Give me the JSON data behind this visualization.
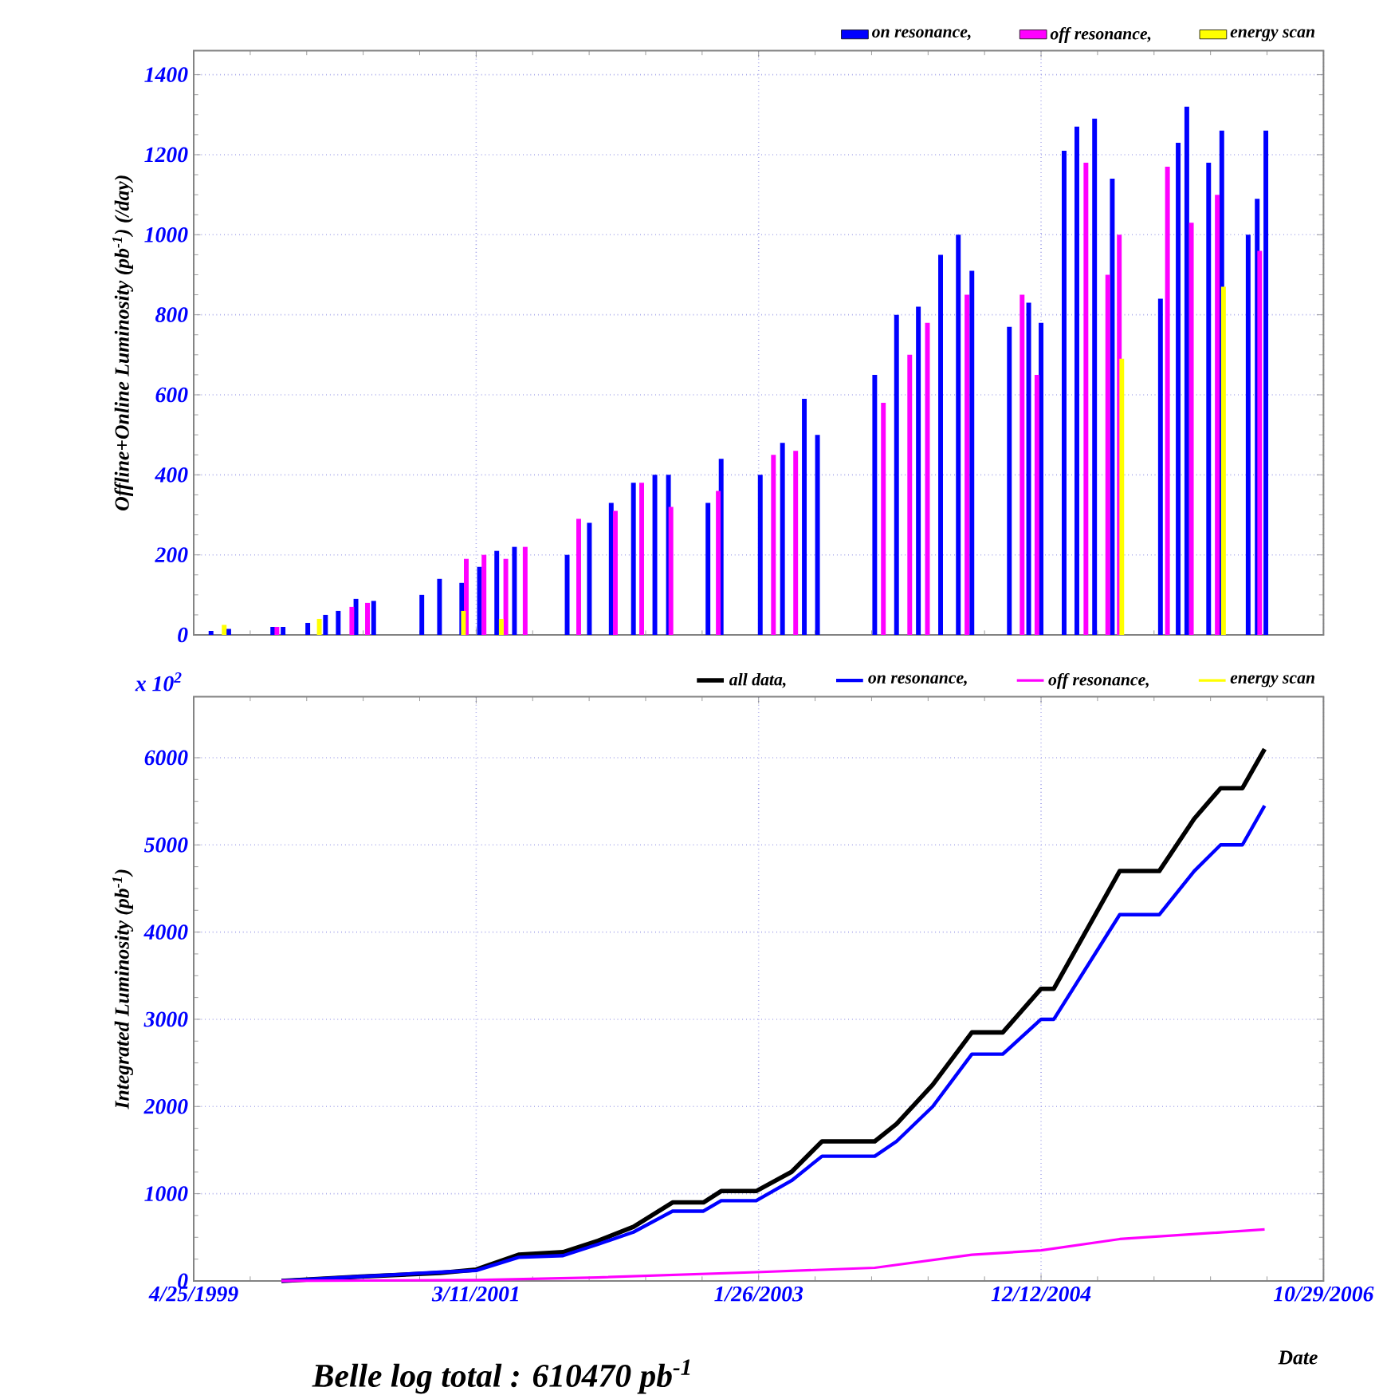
{
  "chart_data": [
    {
      "type": "bar",
      "ylabel": "Offline+Online Luminosity (pb$^{-1}$) (/day)",
      "xlim": [
        "1999-04-25",
        "2006-10-29"
      ],
      "xticks": [
        {
          "value": "1999-04-25",
          "label": null
        },
        {
          "value": "2001-03-11",
          "label": null
        },
        {
          "value": "2003-01-26",
          "label": null
        },
        {
          "value": "2004-12-12",
          "label": null
        },
        {
          "value": "2006-10-29",
          "label": null
        }
      ],
      "ylim": [
        0,
        1460
      ],
      "yticks": [
        0,
        200,
        400,
        600,
        800,
        1000,
        1200,
        1400
      ],
      "grid": true,
      "legend": "top right",
      "tick_labels": "y",
      "series": [
        {
          "name": "on resonance,",
          "color": "#0000ff",
          "x": [
            "1999-06-06",
            "1999-07-19",
            "1999-11-03",
            "1999-11-28",
            "2000-01-27",
            "2000-03-10",
            "2000-04-10",
            "2000-05-23",
            "2000-07-05",
            "2000-10-30",
            "2000-12-12",
            "2001-02-04",
            "2001-03-19",
            "2001-04-30",
            "2001-06-12",
            "2001-10-18",
            "2001-12-11",
            "2002-02-02",
            "2002-03-28",
            "2002-05-19",
            "2002-06-21",
            "2002-09-25",
            "2002-10-27",
            "2003-01-30",
            "2003-03-25",
            "2003-05-17",
            "2003-06-18",
            "2003-11-04",
            "2003-12-27",
            "2004-02-18",
            "2004-04-12",
            "2004-05-25",
            "2004-06-27",
            "2004-09-26",
            "2004-11-12",
            "2004-12-12",
            "2005-02-06",
            "2005-03-09",
            "2005-04-21",
            "2005-06-03",
            "2005-09-28",
            "2005-11-10",
            "2005-12-01",
            "2006-01-23",
            "2006-02-24",
            "2006-04-29",
            "2006-05-21",
            "2006-06-11"
          ],
          "values": [
            10,
            15,
            20,
            20,
            30,
            50,
            60,
            90,
            85,
            100,
            140,
            130,
            170,
            210,
            220,
            200,
            280,
            330,
            380,
            400,
            400,
            330,
            440,
            400,
            480,
            590,
            500,
            650,
            800,
            820,
            950,
            1000,
            910,
            770,
            830,
            780,
            1210,
            1270,
            1290,
            1140,
            840,
            1230,
            1320,
            1180,
            1260,
            1000,
            1090,
            1260
          ]
        },
        {
          "name": "off resonance,",
          "color": "#ff00ff",
          "x": [
            "1999-11-13",
            "2000-05-13",
            "2000-06-20",
            "2001-02-15",
            "2001-03-30",
            "2001-05-22",
            "2001-07-08",
            "2001-11-15",
            "2002-02-12",
            "2002-04-17",
            "2002-06-27",
            "2002-10-20",
            "2003-03-03",
            "2003-04-26",
            "2003-11-25",
            "2004-01-28",
            "2004-03-11",
            "2004-06-15",
            "2004-10-27",
            "2004-12-02",
            "2005-03-31",
            "2005-05-23",
            "2005-06-20",
            "2005-10-15",
            "2005-12-12",
            "2006-02-13",
            "2006-05-27"
          ],
          "values": [
            20,
            70,
            80,
            190,
            200,
            190,
            220,
            290,
            310,
            380,
            320,
            360,
            450,
            460,
            580,
            700,
            780,
            850,
            850,
            650,
            1180,
            900,
            1000,
            1170,
            1030,
            1100,
            960
          ]
        },
        {
          "name": "energy scan",
          "color": "#ffff00",
          "x": [
            "1999-07-08",
            "2000-02-24",
            "2001-02-08",
            "2001-05-11",
            "2005-06-26",
            "2006-02-28"
          ],
          "values": [
            25,
            40,
            60,
            40,
            690,
            870
          ]
        }
      ]
    },
    {
      "type": "line",
      "ylabel": "Integrated Luminosity (pb$^{-1}$)",
      "xlabel": "Date",
      "xlim": [
        "1999-04-25",
        "2006-10-29"
      ],
      "xticks": [
        {
          "value": "1999-04-25",
          "label": "4/25/1999"
        },
        {
          "value": "2001-03-11",
          "label": "3/11/2001"
        },
        {
          "value": "2003-01-26",
          "label": "1/26/2003"
        },
        {
          "value": "2004-12-12",
          "label": "12/12/2004"
        },
        {
          "value": "2006-10-29",
          "label": "10/29/2006"
        }
      ],
      "ylim": [
        0,
        6700
      ],
      "yticks": [
        0,
        1000,
        2000,
        3000,
        4000,
        5000,
        6000
      ],
      "grid": true,
      "legend": "top right",
      "annotations": [
        "x 10$^{2}$",
        "Belle log total : 610470 pb$^{-1}$"
      ],
      "series": [
        {
          "name": "all data,",
          "color": "#000000",
          "x": [
            "1999-11-24",
            "2000-06-04",
            "2000-12-13",
            "2001-03-11",
            "2001-06-22",
            "2001-10-08",
            "2002-01-01",
            "2002-03-28",
            "2002-07-01",
            "2002-09-14",
            "2002-10-27",
            "2003-01-20",
            "2003-04-16",
            "2003-06-29",
            "2003-11-04",
            "2003-12-27",
            "2004-03-24",
            "2004-06-27",
            "2004-09-10",
            "2004-12-12",
            "2005-01-12",
            "2005-06-21",
            "2005-09-25",
            "2005-12-19",
            "2006-02-21",
            "2006-04-15",
            "2006-06-08"
          ],
          "values": [
            0,
            50,
            90,
            130,
            300,
            330,
            460,
            620,
            900,
            900,
            1030,
            1030,
            1250,
            1600,
            1600,
            1800,
            2250,
            2850,
            2850,
            3350,
            3350,
            4700,
            4700,
            5300,
            5650,
            5650,
            6100
          ]
        },
        {
          "name": "on resonance,",
          "color": "#0000ff",
          "x": [
            "1999-11-24",
            "2000-06-04",
            "2000-12-13",
            "2001-03-11",
            "2001-06-22",
            "2001-10-08",
            "2002-01-01",
            "2002-03-28",
            "2002-07-01",
            "2002-09-14",
            "2002-10-27",
            "2003-01-20",
            "2003-04-16",
            "2003-06-29",
            "2003-11-04",
            "2003-12-27",
            "2004-03-24",
            "2004-06-27",
            "2004-09-10",
            "2004-12-12",
            "2005-01-12",
            "2005-06-21",
            "2005-09-25",
            "2005-12-19",
            "2006-02-21",
            "2006-04-15",
            "2006-06-08"
          ],
          "values": [
            0,
            50,
            100,
            120,
            270,
            290,
            420,
            560,
            800,
            800,
            920,
            920,
            1150,
            1430,
            1430,
            1600,
            2000,
            2600,
            2600,
            3000,
            3000,
            4200,
            4200,
            4700,
            5000,
            5000,
            5450
          ]
        },
        {
          "name": "off resonance,",
          "color": "#ff00ff",
          "x": [
            "1999-11-24",
            "2001-03-11",
            "2002-01-01",
            "2003-01-20",
            "2003-11-04",
            "2004-06-27",
            "2004-12-12",
            "2005-06-21",
            "2006-06-08"
          ],
          "values": [
            0,
            10,
            40,
            100,
            150,
            300,
            350,
            480,
            590
          ]
        },
        {
          "name": "energy scan",
          "color": "#ffff00"
        }
      ]
    }
  ]
}
